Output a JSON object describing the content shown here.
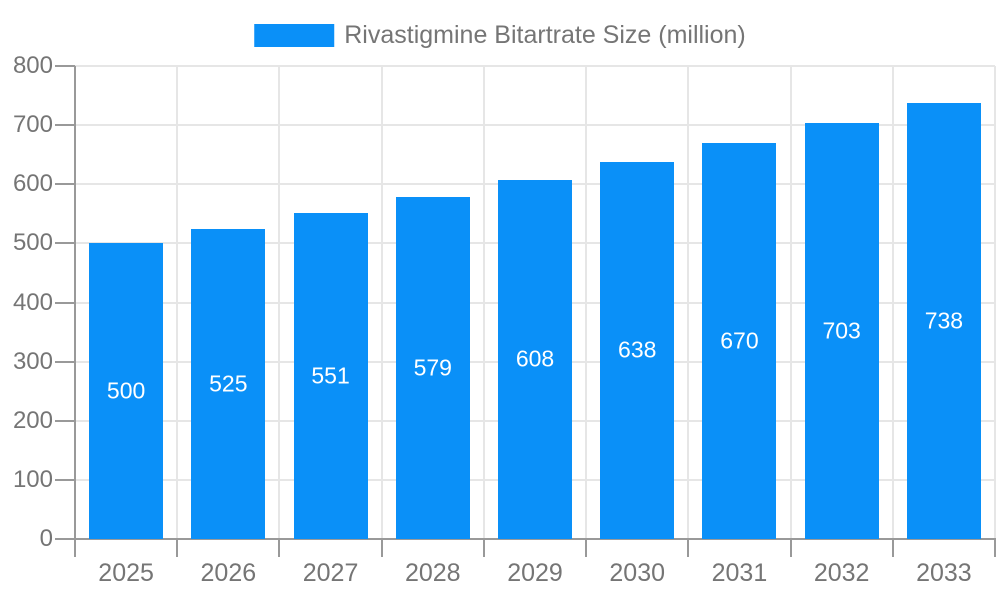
{
  "legend": {
    "label": "Rivastigmine Bitartrate Size (million)"
  },
  "chart_data": {
    "type": "bar",
    "title": "Rivastigmine Bitartrate Size (million)",
    "series_name": "Rivastigmine Bitartrate Size (million)",
    "categories": [
      "2025",
      "2026",
      "2027",
      "2028",
      "2029",
      "2030",
      "2031",
      "2032",
      "2033"
    ],
    "values": [
      500,
      525,
      551,
      579,
      608,
      638,
      670,
      703,
      738
    ],
    "value_labels": [
      "500",
      "525",
      "551",
      "579",
      "608",
      "638",
      "670",
      "703",
      "738"
    ],
    "xlabel": "",
    "ylabel": "",
    "ylim": [
      0,
      800
    ],
    "y_ticks": [
      0,
      100,
      200,
      300,
      400,
      500,
      600,
      700,
      800
    ],
    "grid": true,
    "legend_position": "top-center",
    "colors": {
      "bar": "#0A90F8",
      "axis_line": "#999999",
      "grid_line": "#E6E6E6",
      "tick_label": "#757575",
      "legend_text": "#757575",
      "value_label": "#FFFFFF",
      "background": "#FFFFFF"
    }
  }
}
